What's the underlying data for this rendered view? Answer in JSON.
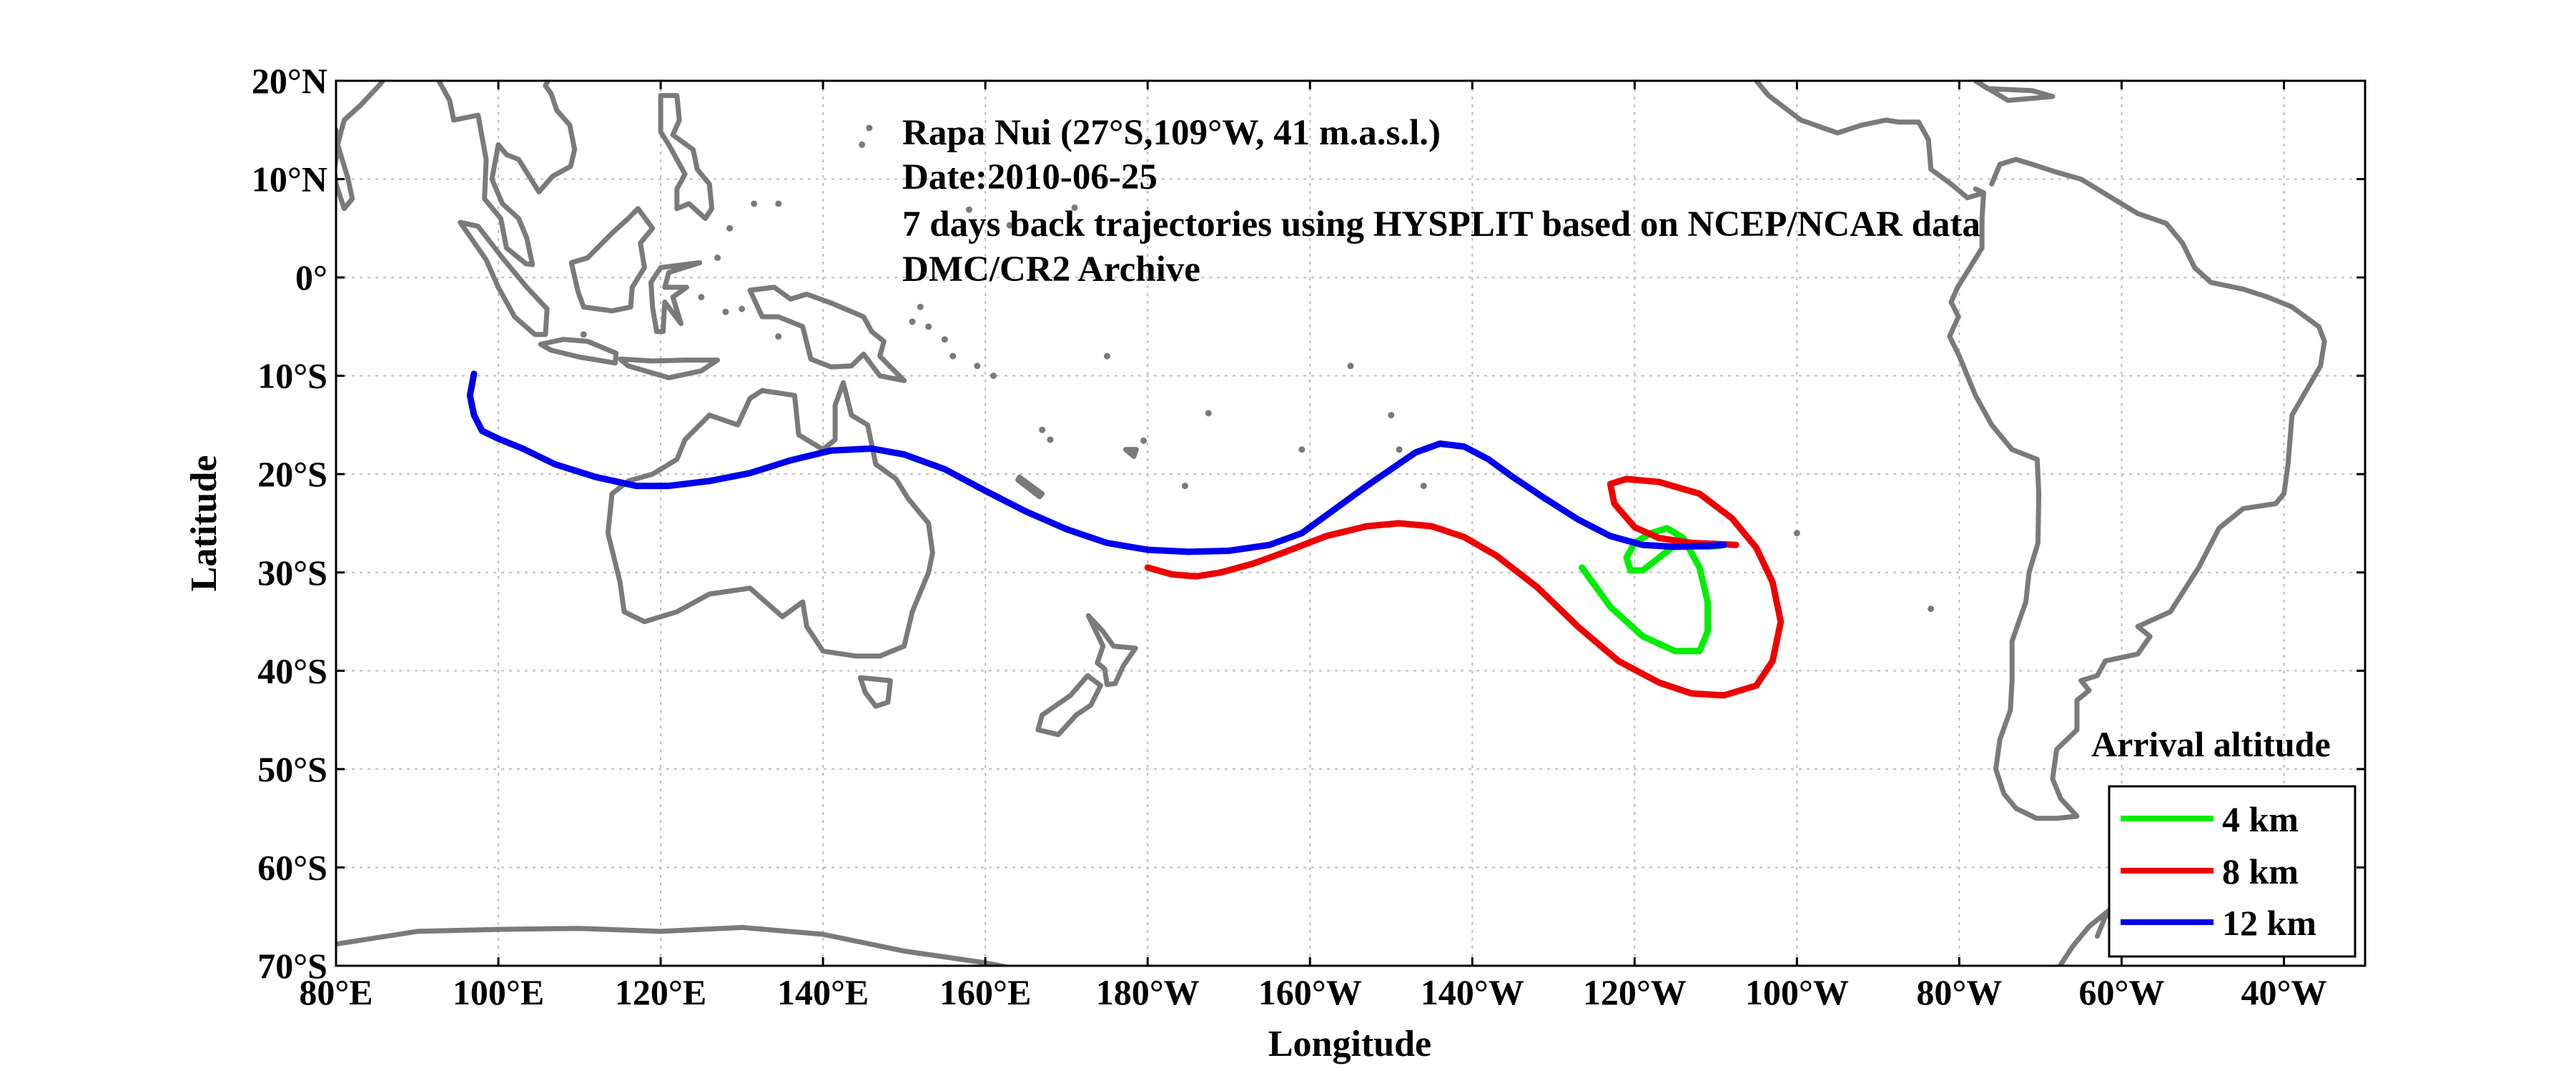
{
  "map": {
    "annotation_lines": [
      "Rapa Nui (27°S,109°W, 41 m.a.s.l.)",
      "Date:2010-06-25",
      "7 days back trajectories using HYSPLIT based on NCEP/NCAR data",
      "DMC/CR2 Archive"
    ],
    "xlabel": "Longitude",
    "ylabel": "Latitude",
    "lon_ticks": [
      80,
      100,
      120,
      140,
      160,
      180,
      200,
      220,
      240,
      260,
      280,
      300,
      320
    ],
    "lon_tick_labels": [
      "80°E",
      "100°E",
      "120°E",
      "140°E",
      "160°E",
      "180°W",
      "160°W",
      "140°W",
      "120°W",
      "100°W",
      "80°W",
      "60°W",
      "40°W"
    ],
    "lat_ticks": [
      20,
      10,
      0,
      -10,
      -20,
      -30,
      -40,
      -50,
      -60,
      -70
    ],
    "lat_tick_labels": [
      "20°N",
      "10°N",
      "0°",
      "10°S",
      "20°S",
      "30°S",
      "40°S",
      "50°S",
      "60°S",
      "70°S"
    ],
    "xlim": [
      80,
      330
    ],
    "ylim": [
      -70,
      20
    ],
    "grid": true,
    "coastline_color": "#7a7a7a",
    "legend": {
      "title": "Arrival altitude",
      "position": "bottom-right",
      "entries": [
        {
          "label": "4 km",
          "color": "#00ee00"
        },
        {
          "label": "8 km",
          "color": "#ee0000"
        },
        {
          "label": "12 km",
          "color": "#0000ee"
        }
      ]
    }
  },
  "chart_data": {
    "type": "line",
    "title": "",
    "xlabel": "Longitude",
    "ylabel": "Latitude",
    "xlim": [
      80,
      330
    ],
    "ylim": [
      -70,
      20
    ],
    "grid": true,
    "legend_title": "Arrival altitude",
    "series": [
      {
        "name": "4 km",
        "color": "#00ee00",
        "x": [
          233.5,
          237,
          241,
          245,
          248,
          249,
          249,
          248,
          246,
          244,
          242,
          240,
          239,
          239.5,
          241,
          243,
          245,
          247,
          249,
          250.5
        ],
        "y": [
          -29.5,
          -33.5,
          -36.5,
          -38,
          -38,
          -36,
          -33,
          -29.5,
          -26.5,
          -25.5,
          -26,
          -27,
          -28.5,
          -29.8,
          -29.8,
          -28.5,
          -27.2,
          -27.3,
          -27.4,
          -27.3
        ]
      },
      {
        "name": "8 km",
        "color": "#ee0000",
        "x": [
          180,
          183,
          186,
          189,
          193,
          197,
          202,
          207,
          211,
          215,
          219,
          223,
          228,
          233,
          238,
          243,
          247,
          251,
          255,
          257,
          258,
          257,
          255,
          252,
          248,
          243,
          239,
          237,
          237.5,
          240,
          243,
          247,
          250,
          252.5
        ],
        "y": [
          -29.5,
          -30.2,
          -30.4,
          -30,
          -29.1,
          -27.9,
          -26.3,
          -25.3,
          -25,
          -25.3,
          -26.4,
          -28.3,
          -31.5,
          -35.5,
          -39,
          -41.2,
          -42.3,
          -42.5,
          -41.5,
          -39,
          -35,
          -31,
          -27.5,
          -24.5,
          -22,
          -20.8,
          -20.5,
          -21,
          -23,
          -25.4,
          -26.5,
          -27,
          -27.1,
          -27.2
        ]
      },
      {
        "name": "12 km",
        "color": "#0000ee",
        "x": [
          97,
          96.5,
          97,
          98,
          100,
          103,
          107,
          112,
          117,
          121,
          126,
          131,
          136,
          141,
          146,
          150,
          155,
          160,
          165,
          170,
          175,
          180,
          185,
          190,
          195,
          199,
          203,
          207,
          210,
          213,
          216,
          219,
          222,
          225,
          229,
          233,
          237,
          241,
          245,
          249,
          251
        ],
        "y": [
          -9.8,
          -12,
          -14,
          -15.6,
          -16.4,
          -17.4,
          -19,
          -20.3,
          -21.2,
          -21.2,
          -20.7,
          -19.9,
          -18.6,
          -17.6,
          -17.4,
          -18,
          -19.5,
          -21.7,
          -23.8,
          -25.6,
          -27,
          -27.7,
          -27.9,
          -27.8,
          -27.2,
          -26,
          -23.6,
          -21.2,
          -19.5,
          -17.8,
          -16.9,
          -17.2,
          -18.5,
          -20.3,
          -22.5,
          -24.6,
          -26.3,
          -27.2,
          -27.4,
          -27.3,
          -27.2
        ]
      }
    ]
  }
}
